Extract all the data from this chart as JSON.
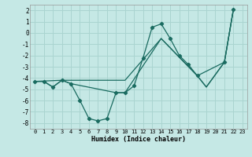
{
  "xlabel": "Humidex (Indice chaleur)",
  "xlim": [
    -0.5,
    23.5
  ],
  "ylim": [
    -8.5,
    2.5
  ],
  "yticks": [
    2,
    1,
    0,
    -1,
    -2,
    -3,
    -4,
    -5,
    -6,
    -7,
    -8
  ],
  "xticks": [
    0,
    1,
    2,
    3,
    4,
    5,
    6,
    7,
    8,
    9,
    10,
    11,
    12,
    13,
    14,
    15,
    16,
    17,
    18,
    19,
    20,
    21,
    22,
    23
  ],
  "bg_color": "#c5e8e5",
  "grid_color": "#aad4d0",
  "line_color": "#1a6b60",
  "line1_x": [
    0,
    1,
    2,
    3,
    4,
    5,
    6,
    7,
    8,
    9,
    10,
    11,
    12,
    13,
    14,
    15,
    16,
    17,
    18,
    21,
    22
  ],
  "line1_y": [
    -4.3,
    -4.3,
    -4.8,
    -4.2,
    -4.5,
    -6.0,
    -7.6,
    -7.8,
    -7.6,
    -5.3,
    -5.3,
    -4.7,
    -2.2,
    0.5,
    0.8,
    -0.5,
    -2.0,
    -2.8,
    -3.8,
    -2.6,
    2.1
  ],
  "line2_x": [
    0,
    3,
    10,
    14,
    18,
    19,
    21,
    22
  ],
  "line2_y": [
    -4.3,
    -4.2,
    -4.2,
    -0.5,
    -3.8,
    -4.8,
    -2.6,
    2.1
  ],
  "line3_x": [
    0,
    1,
    2,
    3,
    4,
    9,
    10,
    14,
    18,
    19,
    21,
    22
  ],
  "line3_y": [
    -4.3,
    -4.3,
    -4.8,
    -4.2,
    -4.5,
    -5.3,
    -5.3,
    -0.5,
    -3.8,
    -4.8,
    -2.6,
    2.1
  ]
}
